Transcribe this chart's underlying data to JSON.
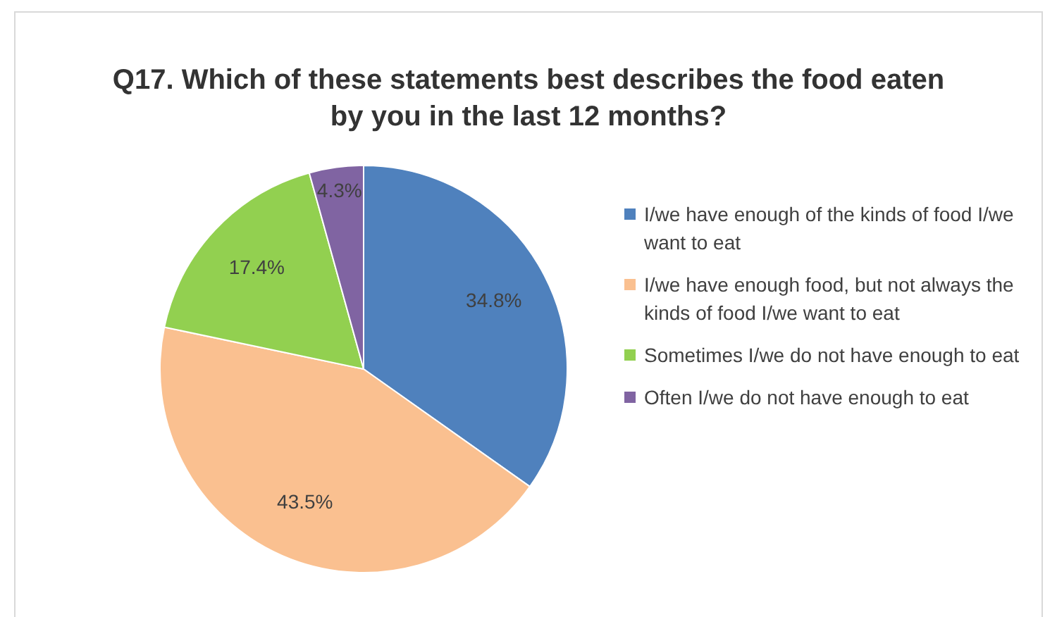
{
  "chart_data": {
    "type": "pie",
    "title": "Q17. Which of these statements best describes the food eaten by you in the last 12 months?",
    "categories": [
      "I/we have enough of the kinds of food I/we want to eat",
      "I/we have enough food, but not always the kinds of food I/we want to eat",
      "Sometimes I/we do not have enough to eat",
      "Often I/we do not have enough to eat"
    ],
    "values": [
      34.8,
      43.5,
      17.4,
      4.3
    ],
    "value_labels": [
      "34.8%",
      "43.5%",
      "17.4%",
      "4.3%"
    ],
    "colors": [
      "#4f81bd",
      "#fac090",
      "#92d050",
      "#8064a2"
    ],
    "legend": "right"
  }
}
